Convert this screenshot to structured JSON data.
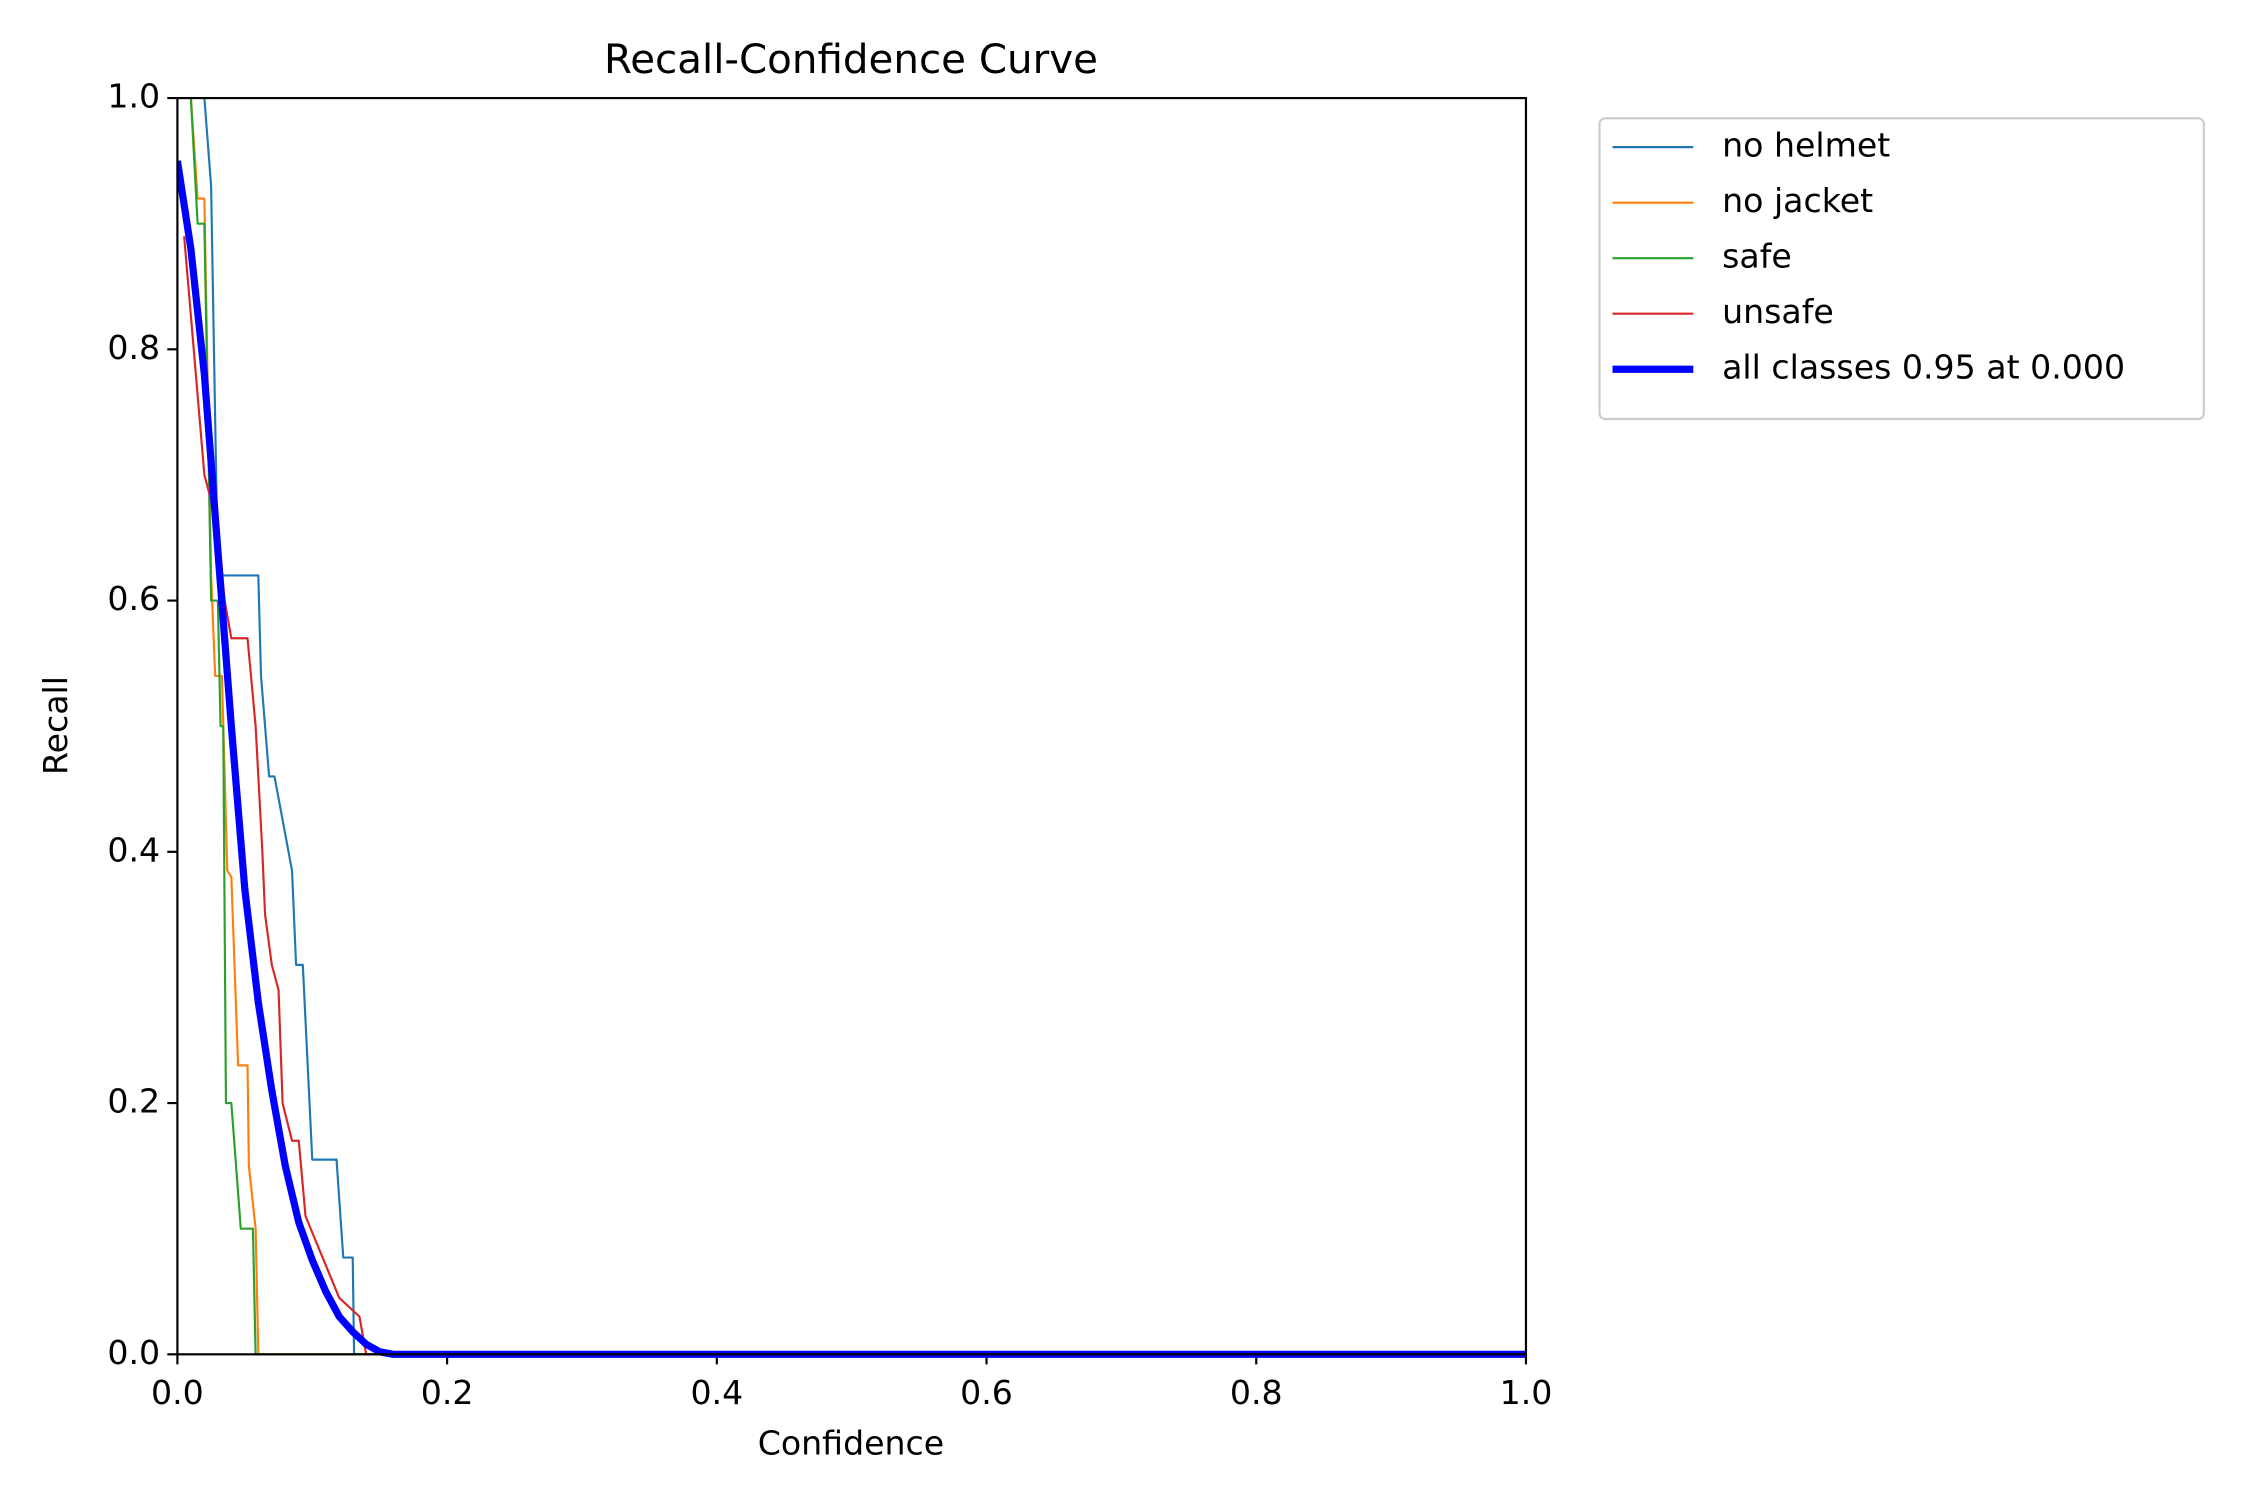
{
  "chart_data": {
    "type": "line",
    "title": "Recall-Confidence Curve",
    "x_label": "Confidence",
    "y_label": "Recall",
    "xlim": [
      0,
      1
    ],
    "ylim": [
      0,
      1
    ],
    "xticks": [
      {
        "value": 0,
        "label": "0.0"
      },
      0.2,
      0.4,
      0.6,
      0.8,
      {
        "value": 1,
        "label": "1.0"
      }
    ],
    "yticks": [
      {
        "value": 0,
        "label": "0.0"
      },
      0.2,
      0.4,
      0.6,
      0.8,
      {
        "value": 1,
        "label": "1.0"
      }
    ],
    "grid": false,
    "legend": "outside-upper-right",
    "series": [
      {
        "name": "no helmet",
        "color": "#1f77b4",
        "x": [
          0.02,
          0.025,
          0.03,
          0.06,
          0.062,
          0.068,
          0.072,
          0.085,
          0.088,
          0.093,
          0.1,
          0.118,
          0.123,
          0.13,
          0.131,
          1.0
        ],
        "values": [
          1.0,
          0.93,
          0.62,
          0.62,
          0.54,
          0.46,
          0.46,
          0.385,
          0.31,
          0.31,
          0.155,
          0.155,
          0.077,
          0.077,
          0,
          0
        ]
      },
      {
        "name": "no jacket",
        "color": "#ff7f0e",
        "x": [
          0.01,
          0.015,
          0.02,
          0.025,
          0.028,
          0.033,
          0.037,
          0.04,
          0.045,
          0.052,
          0.053,
          0.058,
          0.06,
          1.0
        ],
        "values": [
          1.0,
          0.92,
          0.92,
          0.62,
          0.54,
          0.54,
          0.385,
          0.38,
          0.23,
          0.23,
          0.15,
          0.1,
          0,
          0
        ]
      },
      {
        "name": "safe",
        "color": "#2ca02c",
        "x": [
          0.01,
          0.015,
          0.02,
          0.025,
          0.03,
          0.032,
          0.034,
          0.036,
          0.04,
          0.047,
          0.056,
          0.058,
          1.0
        ],
        "values": [
          1.0,
          0.9,
          0.9,
          0.6,
          0.6,
          0.5,
          0.5,
          0.2,
          0.2,
          0.1,
          0.1,
          0,
          0
        ]
      },
      {
        "name": "unsafe",
        "color": "#d62728",
        "x": [
          0.005,
          0.02,
          0.03,
          0.035,
          0.04,
          0.052,
          0.058,
          0.063,
          0.065,
          0.07,
          0.075,
          0.078,
          0.085,
          0.09,
          0.095,
          0.12,
          0.135,
          0.14,
          1.0
        ],
        "values": [
          0.89,
          0.7,
          0.66,
          0.6,
          0.57,
          0.57,
          0.5,
          0.4,
          0.35,
          0.31,
          0.29,
          0.2,
          0.17,
          0.17,
          0.11,
          0.045,
          0.03,
          0,
          0
        ]
      },
      {
        "name": "all classes 0.95 at 0.000",
        "color": "#0000ff",
        "width": 5,
        "x": [
          0,
          0.01,
          0.02,
          0.03,
          0.04,
          0.05,
          0.06,
          0.07,
          0.08,
          0.09,
          0.1,
          0.11,
          0.12,
          0.13,
          0.14,
          0.15,
          0.16,
          1.0
        ],
        "values": [
          0.95,
          0.88,
          0.78,
          0.64,
          0.5,
          0.37,
          0.28,
          0.21,
          0.15,
          0.105,
          0.075,
          0.05,
          0.03,
          0.018,
          0.008,
          0.002,
          0,
          0
        ]
      }
    ]
  }
}
